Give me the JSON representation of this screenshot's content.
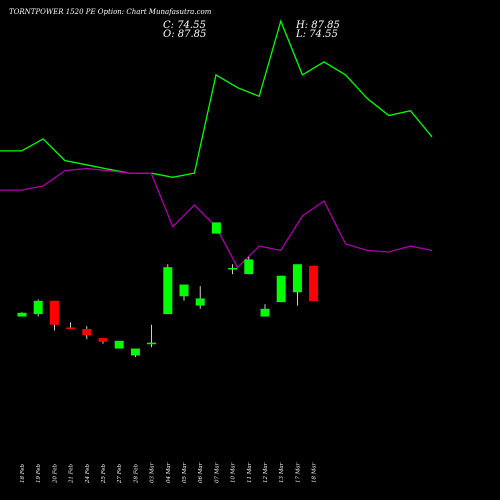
{
  "header": {
    "title": "TORNTPOWER 1520  PE Option: Chart Munafasutra.com",
    "close_label": "C: 74.55",
    "high_label": "H: 87.85",
    "open_label": "O: 87.85",
    "low_label": "L: 74.55"
  },
  "chart_data": {
    "type": "candlestick",
    "title": "TORNTPOWER 1520  PE Option: Chart Munafasutra.com",
    "x_tick_labels": [
      "18 Feb",
      "19 Feb",
      "20 Feb",
      "21 Feb",
      "24 Feb",
      "25 Feb",
      "27 Feb",
      "28 Feb",
      "03 Mar",
      "04 Mar",
      "05 Mar",
      "06 Mar",
      "07 Mar",
      "10 Mar",
      "11 Mar",
      "12 Mar",
      "13 Mar",
      "17 Mar",
      "18 Mar"
    ],
    "candles": [
      {
        "date": "18 Feb",
        "open": 70.2,
        "high": 70.4,
        "low": 68.8,
        "close": 68.8,
        "direction": "up"
      },
      {
        "date": "19 Feb",
        "open": 74.7,
        "high": 75.2,
        "low": 68.8,
        "close": 69.7,
        "direction": "up"
      },
      {
        "date": "20 Feb",
        "open": 74.7,
        "high": 74.7,
        "low": 63.5,
        "close": 65.7,
        "direction": "down"
      },
      {
        "date": "21 Feb",
        "open": 64.7,
        "high": 66.6,
        "low": 64.1,
        "close": 64.1,
        "direction": "down"
      },
      {
        "date": "24 Feb",
        "open": 64.1,
        "high": 65.2,
        "low": 60.3,
        "close": 61.8,
        "direction": "down"
      },
      {
        "date": "25 Feb",
        "open": 60.7,
        "high": 60.7,
        "low": 58.6,
        "close": 59.4,
        "direction": "down"
      },
      {
        "date": "27 Feb",
        "open": 59.7,
        "high": 59.7,
        "low": 56.8,
        "close": 56.8,
        "direction": "up"
      },
      {
        "date": "28 Feb",
        "open": 56.8,
        "high": 56.8,
        "low": 53.6,
        "close": 54.2,
        "direction": "up"
      },
      {
        "date": "03 Mar",
        "open": 59.0,
        "high": 65.7,
        "low": 57.3,
        "close": 58.4,
        "direction": "up"
      },
      {
        "date": "04 Mar",
        "open": 87.3,
        "high": 88.4,
        "low": 69.7,
        "close": 69.7,
        "direction": "up"
      },
      {
        "date": "05 Mar",
        "open": 80.8,
        "high": 80.8,
        "low": 74.7,
        "close": 76.4,
        "direction": "up"
      },
      {
        "date": "06 Mar",
        "open": 75.6,
        "high": 80.2,
        "low": 71.7,
        "close": 72.9,
        "direction": "up"
      },
      {
        "date": "07 Mar",
        "open": 104.1,
        "high": 104.1,
        "low": 99.9,
        "close": 99.9,
        "direction": "up"
      },
      {
        "date": "10 Mar",
        "open": 87.0,
        "high": 88.4,
        "low": 84.7,
        "close": 86.5,
        "direction": "up"
      },
      {
        "date": "11 Mar",
        "open": 90.2,
        "high": 91.2,
        "low": 84.7,
        "close": 84.7,
        "direction": "up"
      },
      {
        "date": "12 Mar",
        "open": 71.7,
        "high": 73.4,
        "low": 68.8,
        "close": 68.8,
        "direction": "up"
      },
      {
        "date": "13 Mar",
        "open": 84.1,
        "high": 84.1,
        "low": 74.2,
        "close": 74.2,
        "direction": "up"
      },
      {
        "date": "17 Mar",
        "open": 88.4,
        "high": 88.4,
        "low": 72.9,
        "close": 77.9,
        "direction": "up"
      },
      {
        "date": "18 Mar",
        "open": 87.85,
        "high": 87.85,
        "low": 74.55,
        "close": 74.55,
        "direction": "down"
      }
    ],
    "series": [
      {
        "values": [
          130.9,
          130.9,
          135.4,
          127.3,
          125.7,
          124.1,
          122.6,
          122.6,
          121.0,
          122.6,
          159.4,
          154.6,
          151.4,
          179.6,
          159.4,
          164.3,
          159.4,
          150.6,
          144.2,
          146.0,
          136.2
        ],
        "color": "#00ff00"
      },
      {
        "values": [
          116.2,
          116.2,
          117.8,
          123.5,
          124.3,
          123.5,
          122.6,
          122.6,
          102.5,
          110.6,
          102.5,
          87.2,
          95.2,
          93.6,
          106.5,
          112.1,
          96.0,
          93.6,
          93.0,
          95.2,
          93.6
        ],
        "color": "#aa00aa"
      }
    ],
    "ylim": [
      0,
      180
    ],
    "grid": false,
    "colors": {
      "up": "#00ff00",
      "down": "#ff0000",
      "background": "#000000",
      "text": "#ffffff",
      "wick": "#ffffff"
    }
  }
}
